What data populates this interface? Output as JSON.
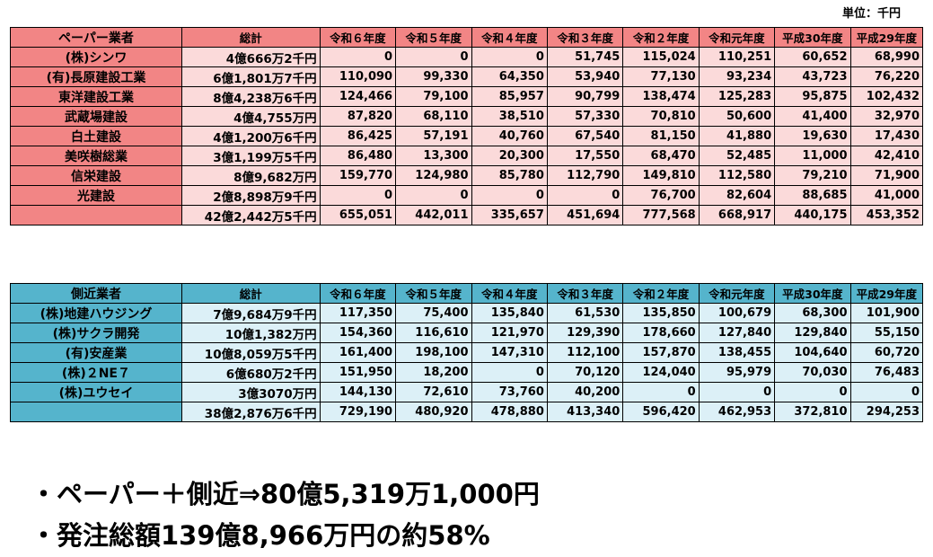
{
  "unit_label": "単位：千円",
  "years": [
    "令和６年度",
    "令和５年度",
    "令和４年度",
    "令和３年度",
    "令和２年度",
    "令和元年度",
    "平成30年度",
    "平成29年度"
  ],
  "total_header": "総計",
  "paper": {
    "header": "ペーパー業者",
    "rows": [
      {
        "name": "(株)シンワ",
        "total": "4億666万2千円",
        "values": [
          "0",
          "0",
          "0",
          "51,745",
          "115,024",
          "110,251",
          "60,652",
          "68,990"
        ]
      },
      {
        "name": "(有)長原建設工業",
        "total": "6億1,801万7千円",
        "values": [
          "110,090",
          "99,330",
          "64,350",
          "53,940",
          "77,130",
          "93,234",
          "43,723",
          "76,220"
        ]
      },
      {
        "name": "東洋建設工業",
        "total": "8億4,238万6千円",
        "values": [
          "124,466",
          "79,100",
          "85,957",
          "90,799",
          "138,474",
          "125,283",
          "95,875",
          "102,432"
        ]
      },
      {
        "name": "武蔵場建設",
        "total": "4億4,755万円",
        "values": [
          "87,820",
          "68,110",
          "38,510",
          "57,330",
          "70,810",
          "50,600",
          "41,400",
          "32,970"
        ]
      },
      {
        "name": "白土建設",
        "total": "4億1,200万6千円",
        "values": [
          "86,425",
          "57,191",
          "40,760",
          "67,540",
          "81,150",
          "41,880",
          "19,630",
          "17,430"
        ]
      },
      {
        "name": "美咲樹総業",
        "total": "3億1,199万5千円",
        "values": [
          "86,480",
          "13,300",
          "20,300",
          "17,550",
          "68,470",
          "52,485",
          "11,000",
          "42,410"
        ]
      },
      {
        "name": "信栄建設",
        "total": "8億9,682万円",
        "values": [
          "159,770",
          "124,980",
          "85,780",
          "112,790",
          "149,810",
          "112,580",
          "79,210",
          "71,900"
        ]
      },
      {
        "name": "光建設",
        "total": "2億8,898万9千円",
        "values": [
          "0",
          "0",
          "0",
          "0",
          "76,700",
          "82,604",
          "88,685",
          "41,000"
        ]
      }
    ],
    "sum": {
      "total": "42億2,442万5千円",
      "values": [
        "655,051",
        "442,011",
        "335,657",
        "451,694",
        "777,568",
        "668,917",
        "440,175",
        "453,352"
      ]
    }
  },
  "close": {
    "header": "側近業者",
    "rows": [
      {
        "name": "(株)地建ハウジング",
        "total": "7億9,684万9千円",
        "values": [
          "117,350",
          "75,400",
          "135,840",
          "61,530",
          "135,850",
          "100,679",
          "68,300",
          "101,900"
        ]
      },
      {
        "name": "(株)サクラ開発",
        "total": "10億1,382万円",
        "values": [
          "154,360",
          "116,610",
          "121,970",
          "129,390",
          "178,660",
          "127,840",
          "129,840",
          "55,150"
        ]
      },
      {
        "name": "(有)安産業",
        "total": "10億8,059万5千円",
        "values": [
          "161,400",
          "198,100",
          "147,310",
          "112,100",
          "157,870",
          "138,455",
          "104,640",
          "60,720"
        ]
      },
      {
        "name": "(株)２NE７",
        "total": "6億680万2千円",
        "values": [
          "151,950",
          "18,200",
          "0",
          "70,120",
          "124,040",
          "95,979",
          "70,030",
          "76,483"
        ]
      },
      {
        "name": "(株)ユウセイ",
        "total": "3億3070万円",
        "values": [
          "144,130",
          "72,610",
          "73,760",
          "40,200",
          "0",
          "0",
          "0",
          "0"
        ]
      }
    ],
    "sum": {
      "total": "38億2,876万6千円",
      "values": [
        "729,190",
        "480,920",
        "478,880",
        "413,340",
        "596,420",
        "462,953",
        "372,810",
        "294,253"
      ]
    }
  },
  "bullets": [
    "・ペーパー＋側近⇒80億5,319万1,000円",
    "・発注総額139億8,966万円の約58%"
  ]
}
